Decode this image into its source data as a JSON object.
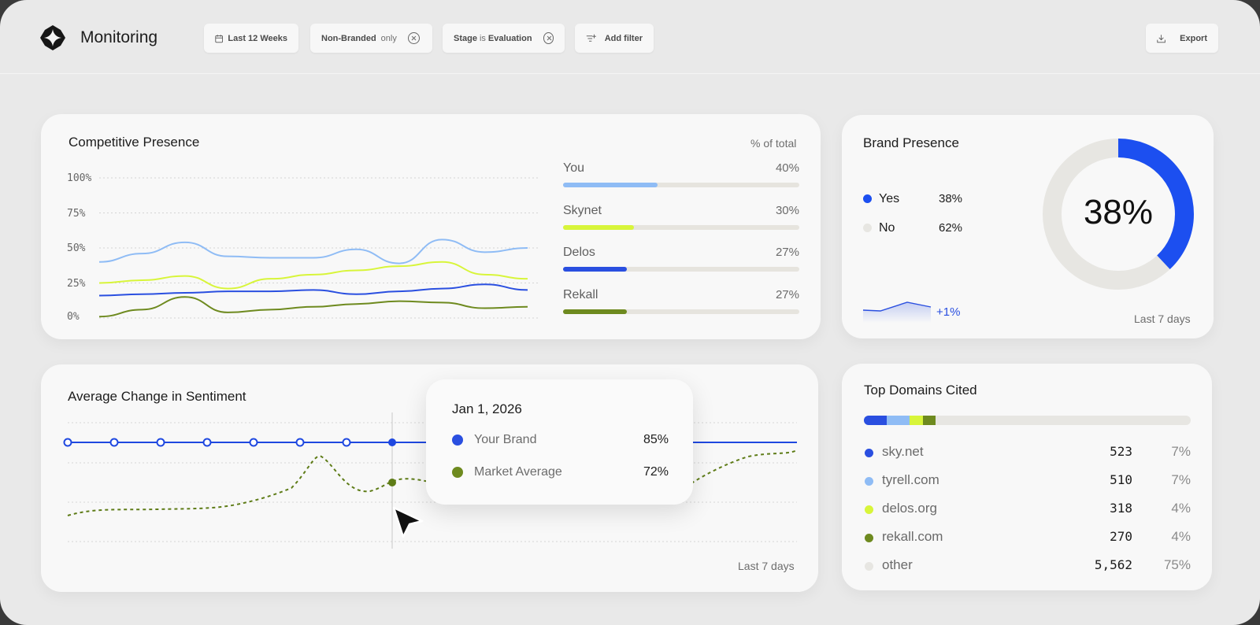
{
  "header": {
    "app_title": "Monitoring",
    "filters": {
      "date_range": "Last 12 Weeks",
      "branded_name": "Non-Branded",
      "branded_suffix": "only",
      "stage_name": "Stage",
      "stage_op": "is",
      "stage_value": "Evaluation",
      "add_filter": "Add filter"
    },
    "export_label": "Export"
  },
  "competitive_presence": {
    "title": "Competitive Presence",
    "subtitle": "% of total",
    "competitors": [
      {
        "name": "You",
        "pct": "40%",
        "value": 0.4,
        "color": "#8fbcf5"
      },
      {
        "name": "Skynet",
        "pct": "30%",
        "value": 0.3,
        "color": "#d8f53a"
      },
      {
        "name": "Delos",
        "pct": "27%",
        "value": 0.27,
        "color": "#2a4fe0"
      },
      {
        "name": "Rekall",
        "pct": "27%",
        "value": 0.27,
        "color": "#6e8a1f"
      }
    ],
    "chart_data": {
      "type": "line",
      "ylim": [
        0,
        100
      ],
      "yticks": [
        "100%",
        "75%",
        "50%",
        "25%",
        "0%"
      ],
      "series": [
        {
          "name": "You",
          "color": "#8fbcf5",
          "values": [
            40,
            46,
            54,
            44,
            43,
            43,
            49,
            39,
            56,
            47,
            50
          ]
        },
        {
          "name": "Skynet",
          "color": "#d8f53a",
          "values": [
            25,
            27,
            30,
            21,
            28,
            31,
            34,
            37,
            40,
            31,
            28
          ]
        },
        {
          "name": "Delos",
          "color": "#2a4fe0",
          "values": [
            16,
            17,
            18,
            19,
            19,
            20,
            17,
            19,
            21,
            24,
            20
          ]
        },
        {
          "name": "Rekall",
          "color": "#6e8a1f",
          "values": [
            1,
            6,
            15,
            4,
            6,
            8,
            10,
            12,
            11,
            7,
            8
          ]
        }
      ]
    }
  },
  "brand_presence": {
    "title": "Brand Presence",
    "legend": [
      {
        "label": "Yes",
        "pct": "38%",
        "color": "#1c4ff0"
      },
      {
        "label": "No",
        "pct": "62%",
        "color": "#e7e6e2"
      }
    ],
    "center_value": "38%",
    "donut_value": 0.38,
    "trend": "+1%",
    "footer": "Last 7 days"
  },
  "sentiment": {
    "title": "Average Change in Sentiment",
    "footer": "Last 7 days",
    "tooltip": {
      "date": "Jan 1, 2026",
      "rows": [
        {
          "label": "Your Brand",
          "value": "85%",
          "color": "#2a4fe0"
        },
        {
          "label": "Market Average",
          "value": "72%",
          "color": "#6e8a1f"
        }
      ]
    }
  },
  "top_domains": {
    "title": "Top Domains Cited",
    "domains": [
      {
        "name": "sky.net",
        "count": "523",
        "pct": "7%",
        "color": "#2a4fe0",
        "share": 7
      },
      {
        "name": "tyrell.com",
        "count": "510",
        "pct": "7%",
        "color": "#8fbcf5",
        "share": 7
      },
      {
        "name": "delos.org",
        "count": "318",
        "pct": "4%",
        "color": "#d8f53a",
        "share": 4
      },
      {
        "name": "rekall.com",
        "count": "270",
        "pct": "4%",
        "color": "#6e8a1f",
        "share": 4
      },
      {
        "name": "other",
        "count": "5,562",
        "pct": "75%",
        "color": "#e7e6e2",
        "share": 75
      }
    ]
  }
}
